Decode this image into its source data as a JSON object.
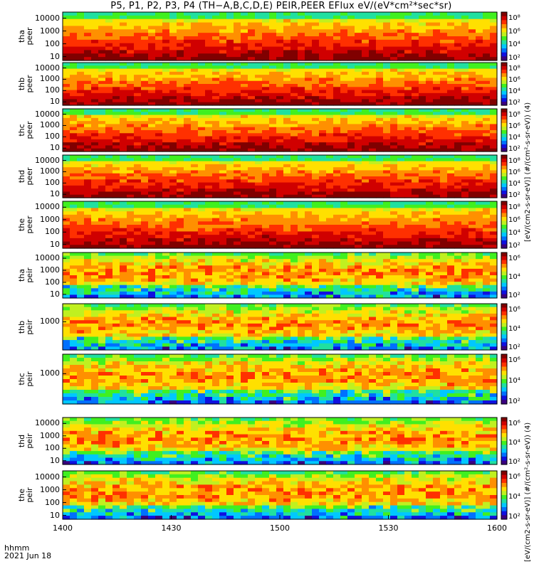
{
  "chart_data": {
    "type": "heatmap",
    "title": "P5, P1, P2, P3, P4 (TH-A,B,C,D,E) PEIR,PEER EFlux eV/(eV*cm^2*sec*sr)",
    "title_display": "P5, P1, P2, P3, P4 (TH−A,B,C,D,E) PEIR,PEER EFlux eV/(eV*cm²*sec*sr)",
    "x_axis": {
      "ticks": [
        "1400",
        "1430",
        "1500",
        "1530",
        "1600"
      ],
      "corner_label_line1": "hhmm",
      "corner_label_line2": "2021 Jun 18",
      "range_minutes": [
        0,
        120
      ]
    },
    "y_scale": "log",
    "colorbar": {
      "scale": "log",
      "unit_label_electron": "[eV/(cm2-s-sr-eV)] (#/(cm²-s-sr-eV)) (4)",
      "unit_label_ion": "[eV/(cm2-s-sr-eV)] (#/(cm²-s-sr-eV)) (4)",
      "ticks_electron": [
        "10⁸",
        "10⁶",
        "10⁴",
        "10²"
      ],
      "ticks_ion": [
        "10⁶",
        "10⁴",
        "10²"
      ]
    },
    "panels": [
      {
        "label_line1": "tha",
        "label_line2": "peer",
        "species": "electron",
        "yticks": [
          "10000",
          "1000",
          "100",
          "10"
        ],
        "ylim": [
          5,
          30000
        ]
      },
      {
        "label_line1": "thb",
        "label_line2": "peer",
        "species": "electron",
        "yticks": [
          "10000",
          "1000",
          "100",
          "10"
        ],
        "ylim": [
          5,
          30000
        ]
      },
      {
        "label_line1": "thc",
        "label_line2": "peer",
        "species": "electron",
        "yticks": [
          "10000",
          "1000",
          "100",
          "10"
        ],
        "ylim": [
          5,
          30000
        ]
      },
      {
        "label_line1": "thd",
        "label_line2": "peer",
        "species": "electron",
        "yticks": [
          "10000",
          "1000",
          "100",
          "10"
        ],
        "ylim": [
          5,
          30000
        ]
      },
      {
        "label_line1": "the",
        "label_line2": "peer",
        "species": "electron",
        "yticks": [
          "10000",
          "1000",
          "100",
          "10"
        ],
        "ylim": [
          5,
          30000
        ]
      },
      {
        "label_line1": "tha",
        "label_line2": "peir",
        "species": "ion",
        "yticks": [
          "10000",
          "1000",
          "100",
          "10"
        ],
        "ylim": [
          5,
          30000
        ]
      },
      {
        "label_line1": "thb",
        "label_line2": "peir",
        "species": "ion",
        "yticks": [
          "1000"
        ],
        "ylim": [
          5,
          30000
        ]
      },
      {
        "label_line1": "thc",
        "label_line2": "peir",
        "species": "ion",
        "yticks": [
          "1000"
        ],
        "ylim": [
          5,
          30000
        ]
      },
      {
        "label_line1": "thd",
        "label_line2": "peir",
        "species": "ion",
        "yticks": [
          "10000",
          "1000",
          "100",
          "10"
        ],
        "ylim": [
          5,
          30000
        ]
      },
      {
        "label_line1": "the",
        "label_line2": "peir",
        "species": "ion",
        "yticks": [
          "10000",
          "1000",
          "100",
          "10"
        ],
        "ylim": [
          5,
          30000
        ]
      }
    ],
    "colors": {
      "frame": "#000000",
      "background": "#ffffff",
      "colormap": [
        "#3a0080",
        "#1010e0",
        "#0070ff",
        "#00c8ff",
        "#20e0a0",
        "#40f020",
        "#c0f020",
        "#ffe000",
        "#ff9000",
        "#ff3000",
        "#d00000",
        "#800000"
      ]
    }
  }
}
